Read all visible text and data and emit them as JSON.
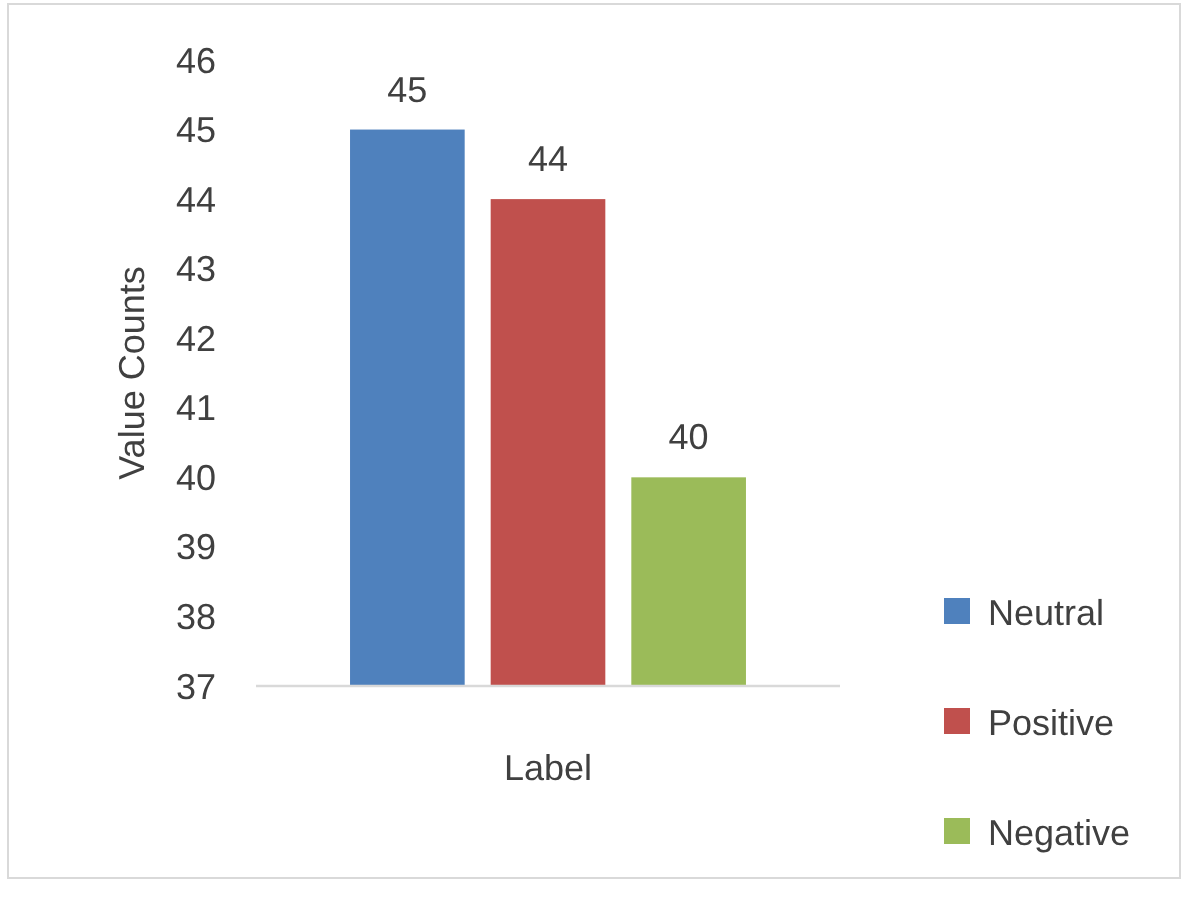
{
  "chart_data": {
    "type": "bar",
    "categories": [
      null
    ],
    "xlabel": "Label",
    "ylabel": "Value Counts",
    "series": [
      {
        "name": "Neutral",
        "color": "#4f81bd",
        "values": [
          45
        ]
      },
      {
        "name": "Positive",
        "color": "#c0504d",
        "values": [
          44
        ]
      },
      {
        "name": "Negative",
        "color": "#9bbb59",
        "values": [
          40
        ]
      }
    ],
    "ylim": [
      37,
      46
    ],
    "yticks": [
      37,
      38,
      39,
      40,
      41,
      42,
      43,
      44,
      45,
      46
    ],
    "grid": false,
    "legend": "right",
    "data_labels": true
  }
}
